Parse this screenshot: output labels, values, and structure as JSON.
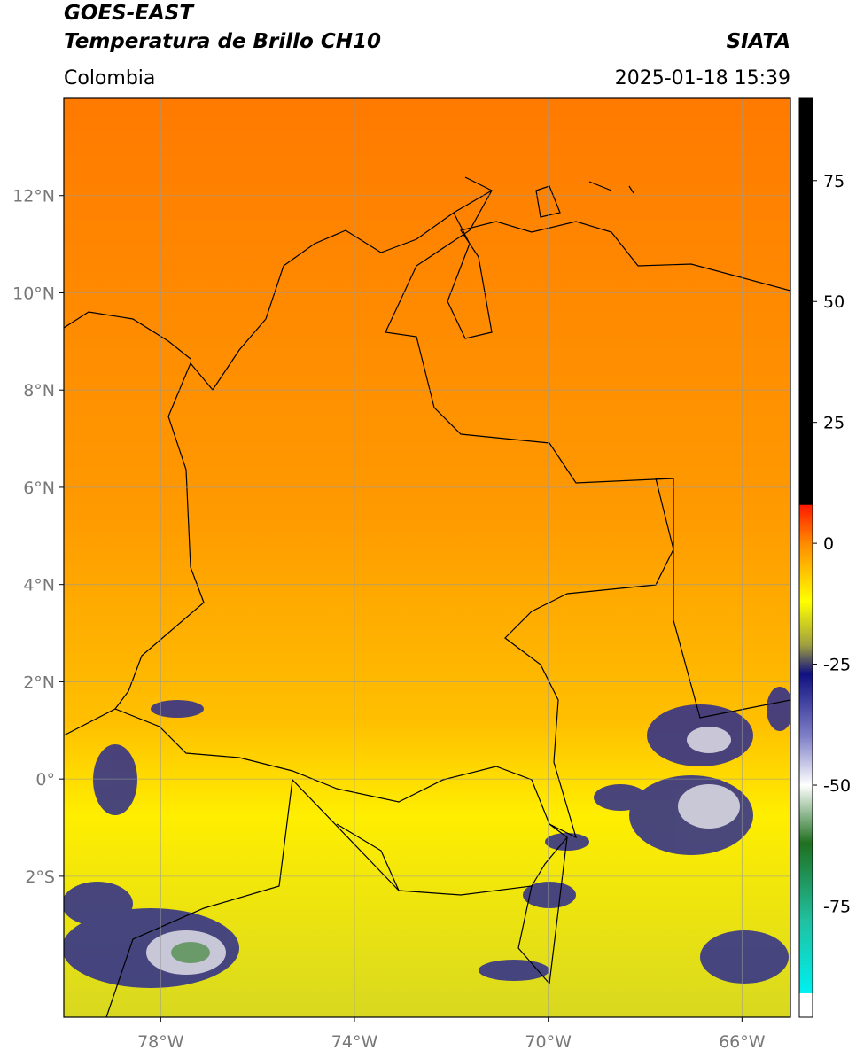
{
  "header": {
    "title": "GOES-EAST",
    "subtitle": "Temperatura de Brillo CH10",
    "source": "SIATA",
    "region": "Colombia",
    "timestamp": "2025-01-18 15:39"
  },
  "map": {
    "xlim": [
      -80,
      -65
    ],
    "ylim": [
      -4.9,
      14
    ],
    "xticks": [
      {
        "value": -78,
        "label": "78°W"
      },
      {
        "value": -74,
        "label": "74°W"
      },
      {
        "value": -70,
        "label": "70°W"
      },
      {
        "value": -66,
        "label": "66°W"
      }
    ],
    "yticks": [
      {
        "value": 12,
        "label": "12°N"
      },
      {
        "value": 10,
        "label": "10°N"
      },
      {
        "value": 8,
        "label": "8°N"
      },
      {
        "value": 6,
        "label": "6°N"
      },
      {
        "value": 4,
        "label": "4°N"
      },
      {
        "value": 2,
        "label": "2°N"
      },
      {
        "value": 0,
        "label": "0°"
      },
      {
        "value": -2,
        "label": "2°S"
      }
    ],
    "grid": true
  },
  "colorbar": {
    "clim": [
      -98,
      92
    ],
    "ticks": [
      75,
      50,
      25,
      0,
      -25,
      -50,
      -75
    ],
    "stops": [
      {
        "value": 92,
        "color": "#000000"
      },
      {
        "value": 8,
        "color": "#000000"
      },
      {
        "value": 7.9,
        "color": "#ff1a00"
      },
      {
        "value": 0,
        "color": "#ff8a00"
      },
      {
        "value": -12,
        "color": "#ffff00"
      },
      {
        "value": -21,
        "color": "#a0a040"
      },
      {
        "value": -27,
        "color": "#101080"
      },
      {
        "value": -40,
        "color": "#8080c8"
      },
      {
        "value": -50,
        "color": "#ffffff"
      },
      {
        "value": -62,
        "color": "#207020"
      },
      {
        "value": -78,
        "color": "#20c0a0"
      },
      {
        "value": -93,
        "color": "#00f0f0"
      },
      {
        "value": -93.1,
        "color": "#ffffff"
      },
      {
        "value": -98,
        "color": "#ffffff"
      }
    ]
  }
}
